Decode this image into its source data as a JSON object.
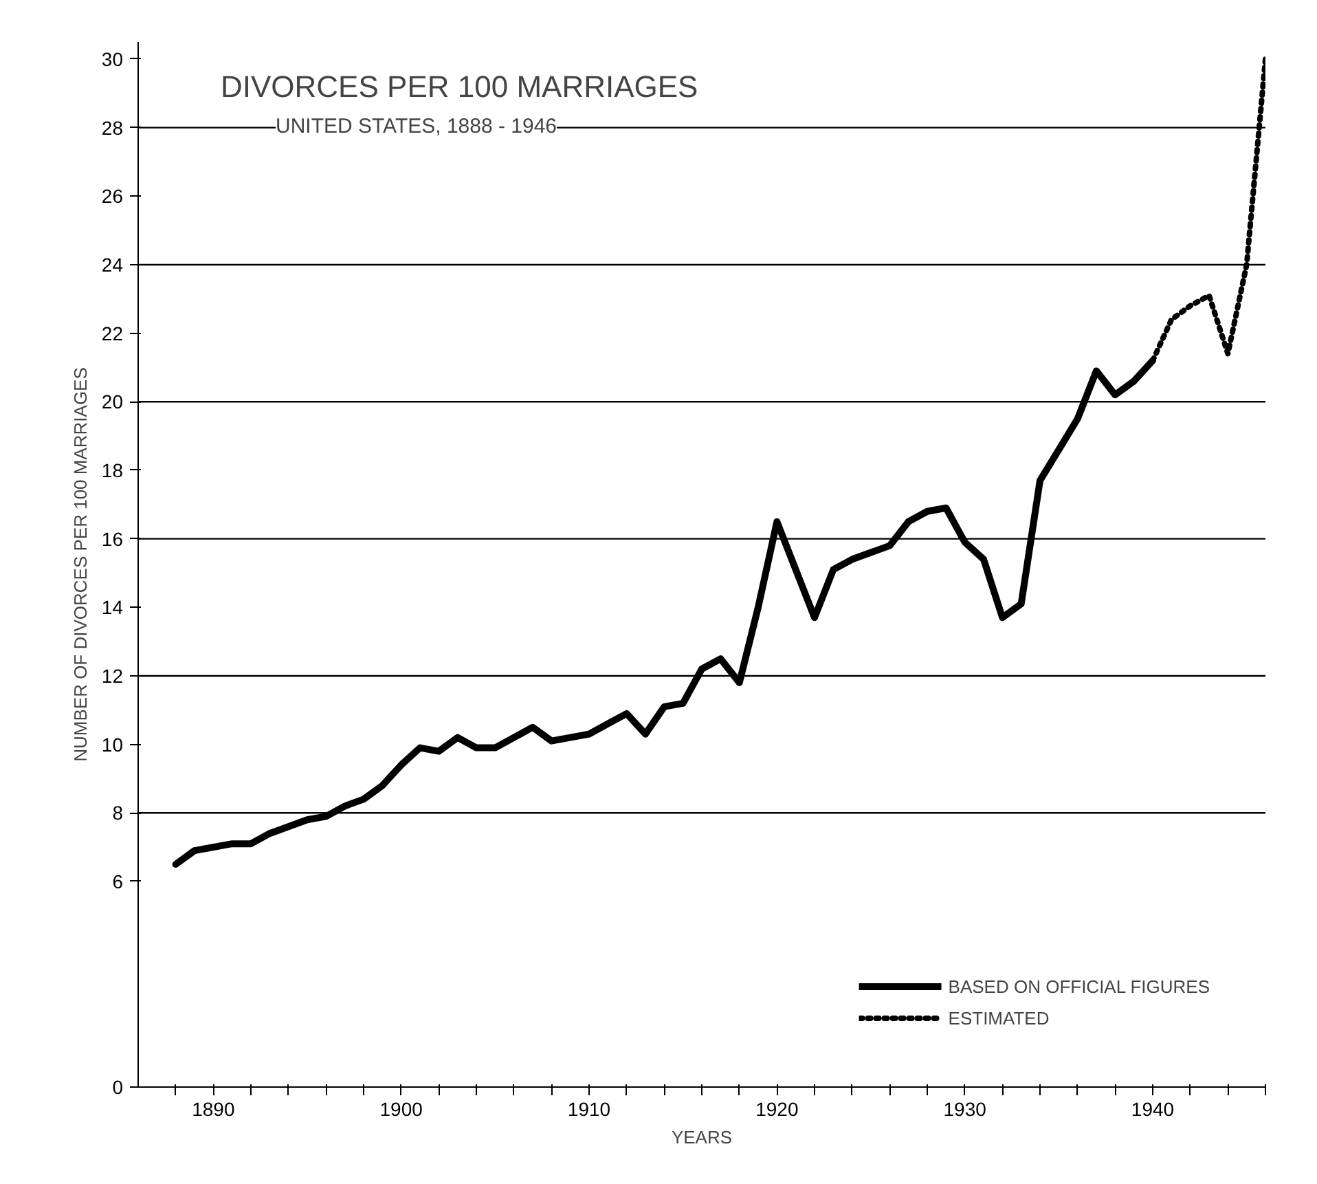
{
  "chart_data": {
    "type": "line",
    "title": "DIVORCES PER 100 MARRIAGES",
    "subtitle": "UNITED STATES, 1888 - 1946",
    "xlabel": "YEARS",
    "ylabel": "NUMBER OF DIVORCES PER 100 MARRIAGES",
    "series": [
      {
        "name": "BASED ON OFFICIAL FIGURES",
        "color": "#000000",
        "line_style": "solid",
        "x": [
          1888,
          1889,
          1890,
          1891,
          1892,
          1893,
          1894,
          1895,
          1896,
          1897,
          1898,
          1899,
          1900,
          1901,
          1902,
          1903,
          1904,
          1905,
          1906,
          1907,
          1908,
          1909,
          1910,
          1911,
          1912,
          1913,
          1914,
          1915,
          1916,
          1917,
          1918,
          1919,
          1920,
          1921,
          1922,
          1923,
          1924,
          1925,
          1926,
          1927,
          1928,
          1929,
          1930,
          1931,
          1932,
          1933,
          1934,
          1935,
          1936,
          1937,
          1938,
          1939,
          1940
        ],
        "values": [
          6.5,
          6.9,
          7.0,
          7.1,
          7.1,
          7.4,
          7.6,
          7.8,
          7.9,
          8.2,
          8.4,
          8.8,
          9.4,
          9.9,
          9.8,
          10.2,
          9.9,
          9.9,
          10.2,
          10.5,
          10.1,
          10.2,
          10.3,
          10.6,
          10.9,
          10.3,
          11.1,
          11.2,
          12.2,
          12.5,
          11.8,
          14.0,
          16.5,
          15.1,
          13.7,
          15.1,
          15.4,
          15.6,
          15.8,
          16.5,
          16.8,
          16.9,
          15.9,
          15.4,
          13.7,
          14.1,
          17.7,
          18.6,
          19.5,
          20.9,
          20.2,
          20.6,
          21.2
        ]
      },
      {
        "name": "ESTIMATED",
        "color": "#000000",
        "line_style": "dotted",
        "x": [
          1940,
          1941,
          1942,
          1943,
          1944,
          1945,
          1946
        ],
        "values": [
          21.2,
          22.4,
          22.8,
          23.1,
          21.4,
          24.0,
          30.0
        ]
      }
    ],
    "xlim": [
      1886,
      1946
    ],
    "xticks": [
      {
        "value": 1888,
        "label": null
      },
      1890,
      {
        "value": 1892,
        "label": null
      },
      {
        "value": 1894,
        "label": null
      },
      {
        "value": 1896,
        "label": null
      },
      {
        "value": 1898,
        "label": null
      },
      1900,
      {
        "value": 1902,
        "label": null
      },
      {
        "value": 1904,
        "label": null
      },
      {
        "value": 1906,
        "label": null
      },
      {
        "value": 1908,
        "label": null
      },
      1910,
      {
        "value": 1912,
        "label": null
      },
      {
        "value": 1914,
        "label": null
      },
      {
        "value": 1916,
        "label": null
      },
      {
        "value": 1918,
        "label": null
      },
      1920,
      {
        "value": 1922,
        "label": null
      },
      {
        "value": 1924,
        "label": null
      },
      {
        "value": 1926,
        "label": null
      },
      {
        "value": 1928,
        "label": null
      },
      1930,
      {
        "value": 1932,
        "label": null
      },
      {
        "value": 1934,
        "label": null
      },
      {
        "value": 1936,
        "label": null
      },
      {
        "value": 1938,
        "label": null
      },
      1940,
      {
        "value": 1942,
        "label": null
      },
      {
        "value": 1944,
        "label": null
      },
      {
        "value": 1946,
        "label": null
      }
    ],
    "ylim": [
      0,
      30.5
    ],
    "yticks": [
      0,
      6,
      8,
      10,
      12,
      14,
      16,
      18,
      20,
      22,
      24,
      26,
      28,
      30
    ],
    "ref_lines": [
      {
        "axis": "y",
        "value": 8
      },
      {
        "axis": "y",
        "value": 12
      },
      {
        "axis": "y",
        "value": 16
      },
      {
        "axis": "y",
        "value": 20
      },
      {
        "axis": "y",
        "value": 24
      },
      {
        "axis": "y",
        "value": 28
      }
    ],
    "legend": "bottom right",
    "grid": false
  }
}
